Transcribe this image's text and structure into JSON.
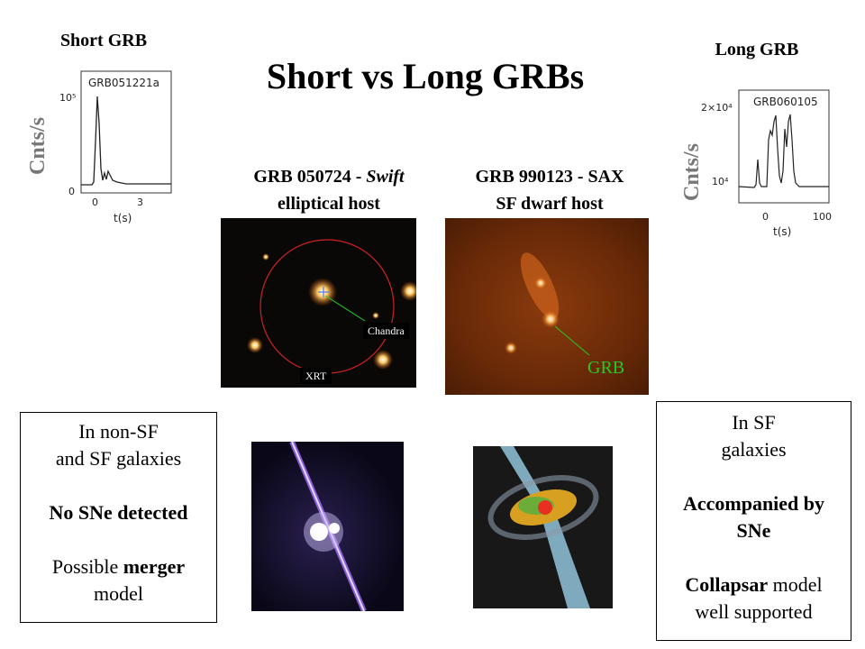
{
  "title": "Short vs Long GRBs",
  "short": {
    "label": "Short GRB",
    "chart": {
      "name": "GRB051221a",
      "ylabel": "Cnts/s",
      "xlabel": "t(s)",
      "yticks": [
        "10⁵",
        "0"
      ],
      "xticks": [
        "0",
        "3"
      ]
    },
    "host_caption": [
      "GRB 050724 - ",
      "Swift",
      "elliptical host"
    ],
    "image_labels": {
      "chandra": "Chandra",
      "xrt": "XRT"
    },
    "box": {
      "line1": "In non-SF",
      "line2": "and SF galaxies",
      "bold": "No SNe detected",
      "line3_pre": "Possible ",
      "line3_bold": "merger",
      "line4": "model"
    }
  },
  "long": {
    "label": "Long GRB",
    "chart": {
      "name": "GRB060105",
      "ylabel": "Cnts/s",
      "xlabel": "t(s)",
      "yticks": [
        "2×10⁴",
        "10⁴"
      ],
      "xticks": [
        "0",
        "100"
      ]
    },
    "host_caption": [
      "GRB 990123 - SAX",
      "SF dwarf host"
    ],
    "image_labels": {
      "grb": "GRB"
    },
    "box": {
      "line1": "In SF",
      "line2": "galaxies",
      "bold1": "Accompanied by",
      "bold2": "SNe",
      "line3_bold": "Collapsar",
      "line3_post": " model",
      "line4": "well supported"
    }
  },
  "colors": {
    "grb_label": "#22cc22",
    "ylabel": "#777777",
    "circle": "#cc2222"
  }
}
